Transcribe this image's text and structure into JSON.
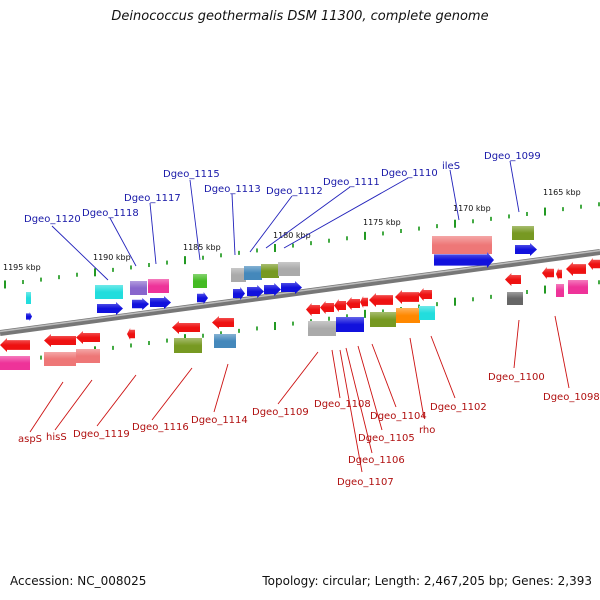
{
  "title": "Deinococcus geothermalis DSM 11300, complete genome",
  "accession": "Accession: NC_008025",
  "topology": "Topology: circular; Length: 2,467,205 bp; Genes: 2,393",
  "colors": {
    "red": "#ee1111",
    "blue": "#1111dd",
    "pink": "#ee3399",
    "salmon": "#ee7777",
    "cyan": "#22dddd",
    "olive": "#779922",
    "steel": "#4488bb",
    "gray": "#aaaaaa",
    "darkgray": "#666666",
    "orange": "#ff8800",
    "purple": "#8866cc",
    "green": "#44bb22",
    "top_label": "#1818a8",
    "bottom_label": "#b01010"
  },
  "kbp_marks": [
    "1195 kbp",
    "1190 kbp",
    "1185 kbp",
    "1180 kbp",
    "1175 kbp",
    "1170 kbp",
    "1165 kbp"
  ],
  "top_labels": [
    "Dgeo_1120",
    "Dgeo_1118",
    "Dgeo_1117",
    "Dgeo_1115",
    "Dgeo_1113",
    "Dgeo_1112",
    "Dgeo_1111",
    "Dgeo_1110",
    "ileS",
    "Dgeo_1099"
  ],
  "bottom_labels": [
    "aspS",
    "hisS",
    "Dgeo_1119",
    "Dgeo_1116",
    "Dgeo_1114",
    "Dgeo_1109",
    "Dgeo_1108",
    "Dgeo_1107",
    "Dgeo_1106",
    "Dgeo_1105",
    "Dgeo_1104",
    "rho",
    "Dgeo_1102",
    "Dgeo_1100",
    "Dgeo_1098"
  ]
}
